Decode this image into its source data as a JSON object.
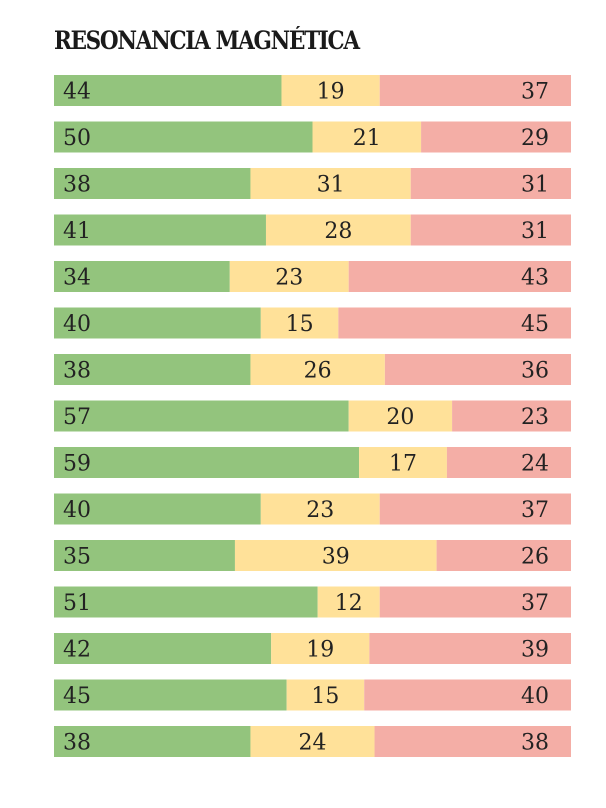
{
  "title": "RESONANCIA MAGNÉTICA",
  "colors": {
    "segment_1": "#93c47d",
    "segment_2": "#ffe199",
    "segment_3": "#f4aea6"
  },
  "chart_data": {
    "type": "bar",
    "orientation": "horizontal",
    "stacked": true,
    "normalized_to": 100,
    "title": "RESONANCIA MAGNÉTICA",
    "xlim": [
      0,
      100
    ],
    "grid": false,
    "legend": "none",
    "series": [
      {
        "values": [
          44,
          50,
          38,
          41,
          34,
          40,
          38,
          57,
          59,
          40,
          35,
          51,
          42,
          45,
          38
        ]
      },
      {
        "values": [
          19,
          21,
          31,
          28,
          23,
          15,
          26,
          20,
          17,
          23,
          39,
          12,
          19,
          15,
          24
        ]
      },
      {
        "values": [
          37,
          29,
          31,
          31,
          43,
          45,
          36,
          23,
          24,
          37,
          26,
          37,
          39,
          40,
          38
        ]
      }
    ]
  }
}
